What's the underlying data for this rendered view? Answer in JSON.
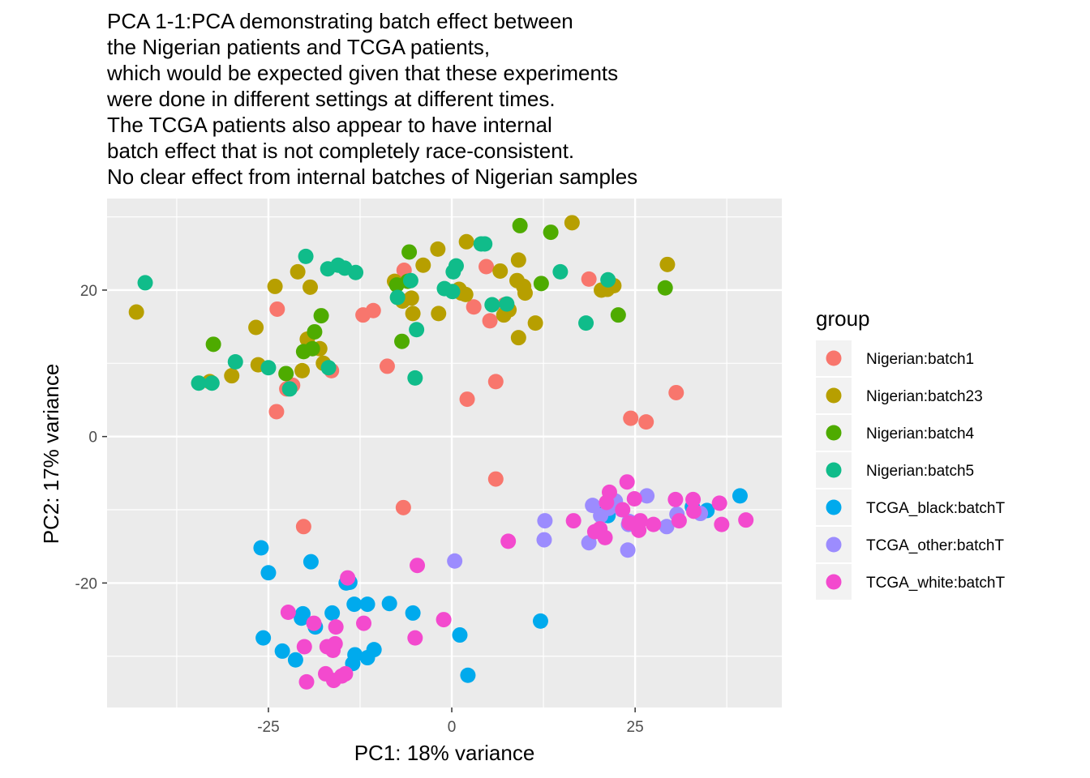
{
  "chart_data": {
    "type": "scatter",
    "title_lines": [
      "PCA 1-1:PCA demonstrating batch effect between",
      "the Nigerian patients and TCGA patients,",
      "which would be expected given that these experiments",
      "were done in different settings at different times.",
      "The TCGA patients also appear to have internal",
      "batch effect that is not completely race-consistent.",
      "No clear effect from internal batches of Nigerian samples"
    ],
    "xlabel": "PC1: 18% variance",
    "ylabel": "PC2: 17% variance",
    "xlim": [
      -47,
      45
    ],
    "ylim": [
      -37,
      32.5
    ],
    "x_ticks": [
      -25,
      0,
      25
    ],
    "x_tick_labels": [
      "-25",
      "0",
      "25"
    ],
    "y_ticks": [
      -20,
      0,
      20
    ],
    "y_tick_labels": [
      "-20",
      "0",
      "20"
    ],
    "grid": true,
    "background": "#ebebeb",
    "legend": {
      "title": "group",
      "position": "right"
    },
    "series": [
      {
        "name": "Nigerian:batch1",
        "color": "#f8766d",
        "points": [
          [
            -23.8,
            17.4
          ],
          [
            -23.9,
            3.4
          ],
          [
            -22.5,
            6.5
          ],
          [
            -21.7,
            7.0
          ],
          [
            -16.4,
            9.0
          ],
          [
            -12.1,
            16.6
          ],
          [
            -10.7,
            17.2
          ],
          [
            -8.8,
            9.6
          ],
          [
            -6.5,
            22.7
          ],
          [
            3.0,
            17.7
          ],
          [
            4.7,
            23.2
          ],
          [
            5.2,
            15.8
          ],
          [
            7.2,
            18.0
          ],
          [
            2.1,
            5.1
          ],
          [
            6.0,
            7.5
          ],
          [
            18.7,
            21.5
          ],
          [
            30.6,
            6.0
          ],
          [
            24.4,
            2.5
          ],
          [
            26.5,
            2.0
          ],
          [
            6.0,
            -5.8
          ],
          [
            -6.6,
            -9.7
          ],
          [
            -20.2,
            -12.3
          ]
        ]
      },
      {
        "name": "Nigerian:batch23",
        "color": "#b79f00",
        "points": [
          [
            -43.0,
            17.0
          ],
          [
            -33.0,
            7.5
          ],
          [
            -30.0,
            8.3
          ],
          [
            -26.7,
            14.9
          ],
          [
            -26.4,
            9.8
          ],
          [
            -24.1,
            20.5
          ],
          [
            -21.0,
            22.5
          ],
          [
            -19.7,
            13.3
          ],
          [
            -19.3,
            20.4
          ],
          [
            -18.0,
            12.0
          ],
          [
            -17.5,
            10.0
          ],
          [
            -20.4,
            9.0
          ],
          [
            -7.8,
            21.2
          ],
          [
            -6.7,
            18.5
          ],
          [
            -5.5,
            18.9
          ],
          [
            -5.3,
            16.8
          ],
          [
            -3.9,
            23.4
          ],
          [
            -1.9,
            25.6
          ],
          [
            -1.8,
            16.8
          ],
          [
            1.0,
            20.1
          ],
          [
            1.3,
            19.6
          ],
          [
            1.9,
            19.4
          ],
          [
            2.0,
            26.6
          ],
          [
            6.6,
            22.6
          ],
          [
            7.1,
            16.6
          ],
          [
            7.8,
            17.3
          ],
          [
            9.1,
            13.5
          ],
          [
            9.1,
            24.1
          ],
          [
            8.9,
            21.3
          ],
          [
            9.8,
            20.5
          ],
          [
            10.0,
            19.6
          ],
          [
            11.4,
            15.5
          ],
          [
            16.4,
            29.2
          ],
          [
            20.4,
            20.0
          ],
          [
            21.2,
            20.1
          ],
          [
            22.1,
            20.6
          ],
          [
            29.4,
            23.5
          ]
        ]
      },
      {
        "name": "Nigerian:batch4",
        "color": "#4eab00",
        "points": [
          [
            -32.5,
            12.6
          ],
          [
            -22.6,
            8.6
          ],
          [
            -20.2,
            11.6
          ],
          [
            -19.0,
            12.0
          ],
          [
            -18.7,
            14.3
          ],
          [
            -17.8,
            16.5
          ],
          [
            -7.5,
            20.7
          ],
          [
            -6.8,
            13.0
          ],
          [
            -5.8,
            25.2
          ],
          [
            -6.0,
            21.2
          ],
          [
            9.3,
            28.8
          ],
          [
            12.2,
            20.9
          ],
          [
            13.5,
            27.9
          ],
          [
            22.7,
            16.6
          ],
          [
            29.1,
            20.3
          ]
        ]
      },
      {
        "name": "Nigerian:batch5",
        "color": "#10bc8a",
        "points": [
          [
            -41.8,
            21.0
          ],
          [
            -34.5,
            7.3
          ],
          [
            -32.7,
            7.3
          ],
          [
            -29.5,
            10.2
          ],
          [
            -25.0,
            9.4
          ],
          [
            -22.1,
            6.5
          ],
          [
            -19.9,
            24.6
          ],
          [
            -16.9,
            22.9
          ],
          [
            -15.5,
            23.4
          ],
          [
            -14.6,
            23.0
          ],
          [
            -13.1,
            22.4
          ],
          [
            -16.8,
            9.4
          ],
          [
            -7.4,
            19.0
          ],
          [
            -5.6,
            21.3
          ],
          [
            -4.8,
            14.6
          ],
          [
            -5.0,
            8.0
          ],
          [
            -1.0,
            20.2
          ],
          [
            0.1,
            19.8
          ],
          [
            0.2,
            22.5
          ],
          [
            0.6,
            23.3
          ],
          [
            4.0,
            26.3
          ],
          [
            4.5,
            26.3
          ],
          [
            5.5,
            18.0
          ],
          [
            7.5,
            18.1
          ],
          [
            14.8,
            22.5
          ],
          [
            18.3,
            15.5
          ],
          [
            21.3,
            21.4
          ]
        ]
      },
      {
        "name": "TCGA_black:batchT",
        "color": "#00aaed",
        "points": [
          [
            -26.0,
            -15.2
          ],
          [
            -25.0,
            -18.6
          ],
          [
            -25.7,
            -27.5
          ],
          [
            -23.1,
            -29.3
          ],
          [
            -21.3,
            -30.5
          ],
          [
            -20.5,
            -24.8
          ],
          [
            -20.3,
            -24.2
          ],
          [
            -19.2,
            -17.1
          ],
          [
            -18.6,
            -26.0
          ],
          [
            -16.3,
            -24.1
          ],
          [
            -14.4,
            -20.0
          ],
          [
            -13.9,
            -19.9
          ],
          [
            -13.3,
            -22.9
          ],
          [
            -11.5,
            -22.9
          ],
          [
            -8.5,
            -22.8
          ],
          [
            -5.3,
            -24.1
          ],
          [
            -13.2,
            -29.8
          ],
          [
            -13.5,
            -31.0
          ],
          [
            -11.5,
            -30.2
          ],
          [
            -10.6,
            -29.1
          ],
          [
            1.1,
            -27.1
          ],
          [
            2.2,
            -32.6
          ],
          [
            12.1,
            -25.2
          ],
          [
            21.0,
            -10.0
          ],
          [
            21.3,
            -10.8
          ],
          [
            32.8,
            -9.6
          ],
          [
            34.8,
            -10.1
          ],
          [
            39.3,
            -8.1
          ]
        ]
      },
      {
        "name": "TCGA_other:batchT",
        "color": "#9c8cfe",
        "points": [
          [
            0.4,
            -17.0
          ],
          [
            12.7,
            -11.5
          ],
          [
            12.6,
            -14.1
          ],
          [
            18.7,
            -14.5
          ],
          [
            19.2,
            -9.4
          ],
          [
            20.3,
            -10.8
          ],
          [
            21.4,
            -9.8
          ],
          [
            22.3,
            -8.8
          ],
          [
            23.2,
            -10.0
          ],
          [
            24.0,
            -15.5
          ],
          [
            24.1,
            -12.0
          ],
          [
            24.2,
            -11.6
          ],
          [
            26.6,
            -8.1
          ],
          [
            29.3,
            -12.3
          ],
          [
            30.7,
            -10.6
          ],
          [
            33.9,
            -10.5
          ]
        ]
      },
      {
        "name": "TCGA_white:batchT",
        "color": "#f34ace",
        "points": [
          [
            -22.3,
            -24.0
          ],
          [
            -18.8,
            -25.5
          ],
          [
            -20.1,
            -28.7
          ],
          [
            -17.2,
            -32.4
          ],
          [
            -17.0,
            -28.7
          ],
          [
            -16.2,
            -29.2
          ],
          [
            -15.9,
            -28.3
          ],
          [
            -15.8,
            -26.0
          ],
          [
            -16.1,
            -33.3
          ],
          [
            -15.0,
            -32.7
          ],
          [
            -14.5,
            -32.4
          ],
          [
            -14.2,
            -19.3
          ],
          [
            -12.0,
            -25.5
          ],
          [
            -5.0,
            -27.5
          ],
          [
            -4.7,
            -17.6
          ],
          [
            -1.1,
            -25.0
          ],
          [
            -19.8,
            -33.5
          ],
          [
            7.7,
            -14.3
          ],
          [
            16.6,
            -11.5
          ],
          [
            19.5,
            -13.0
          ],
          [
            20.2,
            -12.6
          ],
          [
            20.9,
            -13.8
          ],
          [
            21.1,
            -9.0
          ],
          [
            21.5,
            -7.6
          ],
          [
            23.3,
            -10.0
          ],
          [
            23.9,
            -6.2
          ],
          [
            24.2,
            -11.8
          ],
          [
            24.9,
            -8.5
          ],
          [
            25.5,
            -12.8
          ],
          [
            25.7,
            -11.5
          ],
          [
            27.5,
            -12.0
          ],
          [
            30.5,
            -8.6
          ],
          [
            31.0,
            -11.5
          ],
          [
            32.9,
            -8.6
          ],
          [
            33.0,
            -10.2
          ],
          [
            36.5,
            -9.1
          ],
          [
            36.8,
            -12.0
          ],
          [
            40.1,
            -11.4
          ]
        ]
      }
    ]
  }
}
